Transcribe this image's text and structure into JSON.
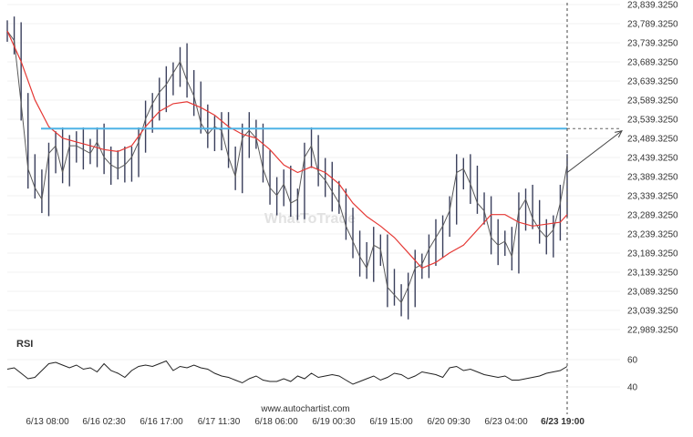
{
  "chart_data": {
    "type": "line",
    "price_panel": {
      "y_ticks": [
        "23,839.3250",
        "23,789.3250",
        "23,739.3250",
        "23,689.3250",
        "23,639.3250",
        "23,589.3250",
        "23,539.3250",
        "23,489.3250",
        "23,439.3250",
        "23,389.3250",
        "23,339.3250",
        "23,289.3250",
        "23,239.3250",
        "23,189.3250",
        "23,139.3250",
        "23,089.3250",
        "23,039.3250",
        "22,989.3250"
      ],
      "ylim": [
        22989.325,
        23839.325
      ],
      "resistance_level": 23515,
      "price_series": [
        [
          0,
          23770
        ],
        [
          1,
          23745
        ],
        [
          2,
          23580
        ],
        [
          3,
          23410
        ],
        [
          4,
          23360
        ],
        [
          5,
          23330
        ],
        [
          6,
          23450
        ],
        [
          7,
          23470
        ],
        [
          8,
          23400
        ],
        [
          9,
          23470
        ],
        [
          10,
          23470
        ],
        [
          11,
          23460
        ],
        [
          12,
          23450
        ],
        [
          13,
          23480
        ],
        [
          14,
          23440
        ],
        [
          15,
          23420
        ],
        [
          16,
          23410
        ],
        [
          17,
          23420
        ],
        [
          18,
          23440
        ],
        [
          19,
          23480
        ],
        [
          20,
          23540
        ],
        [
          21,
          23580
        ],
        [
          22,
          23610
        ],
        [
          23,
          23630
        ],
        [
          24,
          23660
        ],
        [
          25,
          23690
        ],
        [
          26,
          23640
        ],
        [
          27,
          23600
        ],
        [
          28,
          23530
        ],
        [
          29,
          23500
        ],
        [
          30,
          23520
        ],
        [
          31,
          23510
        ],
        [
          32,
          23440
        ],
        [
          33,
          23390
        ],
        [
          34,
          23490
        ],
        [
          35,
          23510
        ],
        [
          36,
          23490
        ],
        [
          37,
          23410
        ],
        [
          38,
          23360
        ],
        [
          39,
          23340
        ],
        [
          40,
          23370
        ],
        [
          41,
          23320
        ],
        [
          42,
          23330
        ],
        [
          43,
          23440
        ],
        [
          44,
          23470
        ],
        [
          45,
          23400
        ],
        [
          46,
          23380
        ],
        [
          47,
          23350
        ],
        [
          48,
          23320
        ],
        [
          49,
          23260
        ],
        [
          50,
          23220
        ],
        [
          51,
          23180
        ],
        [
          52,
          23150
        ],
        [
          53,
          23210
        ],
        [
          54,
          23200
        ],
        [
          55,
          23100
        ],
        [
          56,
          23080
        ],
        [
          57,
          23060
        ],
        [
          58,
          23100
        ],
        [
          59,
          23150
        ],
        [
          60,
          23160
        ],
        [
          61,
          23200
        ],
        [
          62,
          23230
        ],
        [
          63,
          23260
        ],
        [
          64,
          23300
        ],
        [
          65,
          23400
        ],
        [
          66,
          23410
        ],
        [
          67,
          23370
        ],
        [
          68,
          23320
        ],
        [
          69,
          23300
        ],
        [
          70,
          23230
        ],
        [
          71,
          23210
        ],
        [
          72,
          23220
        ],
        [
          73,
          23180
        ],
        [
          74,
          23300
        ],
        [
          75,
          23330
        ],
        [
          76,
          23280
        ],
        [
          77,
          23250
        ],
        [
          78,
          23230
        ],
        [
          79,
          23250
        ],
        [
          80,
          23320
        ],
        [
          81,
          23420
        ]
      ],
      "ma_series": [
        [
          0,
          23770
        ],
        [
          2,
          23690
        ],
        [
          4,
          23590
        ],
        [
          6,
          23520
        ],
        [
          8,
          23490
        ],
        [
          10,
          23480
        ],
        [
          12,
          23470
        ],
        [
          14,
          23460
        ],
        [
          16,
          23455
        ],
        [
          18,
          23470
        ],
        [
          20,
          23520
        ],
        [
          22,
          23560
        ],
        [
          24,
          23580
        ],
        [
          26,
          23585
        ],
        [
          28,
          23570
        ],
        [
          30,
          23550
        ],
        [
          32,
          23520
        ],
        [
          34,
          23500
        ],
        [
          36,
          23490
        ],
        [
          38,
          23460
        ],
        [
          40,
          23420
        ],
        [
          42,
          23400
        ],
        [
          44,
          23415
        ],
        [
          46,
          23400
        ],
        [
          48,
          23370
        ],
        [
          50,
          23320
        ],
        [
          52,
          23285
        ],
        [
          54,
          23260
        ],
        [
          56,
          23230
        ],
        [
          58,
          23190
        ],
        [
          60,
          23150
        ],
        [
          62,
          23165
        ],
        [
          64,
          23190
        ],
        [
          66,
          23210
        ],
        [
          68,
          23250
        ],
        [
          70,
          23290
        ],
        [
          72,
          23290
        ],
        [
          74,
          23270
        ],
        [
          76,
          23260
        ],
        [
          78,
          23265
        ],
        [
          80,
          23270
        ],
        [
          81,
          23290
        ]
      ],
      "forecast_end": 23509,
      "watermark": "WhatToTrade"
    },
    "rsi_panel": {
      "label": "RSI",
      "y_ticks": [
        "60",
        "40"
      ],
      "ylim": [
        30,
        70
      ],
      "values": [
        53,
        54,
        50,
        46,
        47,
        52,
        57,
        58,
        56,
        54,
        56,
        53,
        54,
        51,
        57,
        52,
        50,
        47,
        52,
        55,
        56,
        55,
        57,
        59,
        52,
        55,
        54,
        56,
        54,
        53,
        50,
        48,
        47,
        45,
        43,
        46,
        48,
        45,
        44,
        44,
        46,
        44,
        48,
        46,
        50,
        47,
        48,
        49,
        48,
        45,
        42,
        44,
        46,
        48,
        45,
        47,
        50,
        49,
        46,
        48,
        51,
        50,
        49,
        47,
        54,
        55,
        52,
        53,
        51,
        49,
        48,
        47,
        48,
        45,
        45,
        46,
        47,
        48,
        50,
        51,
        52,
        55
      ]
    },
    "x_ticks": [
      "6/13 08:00",
      "6/16 02:30",
      "6/16 17:00",
      "6/17 11:30",
      "6/18 06:00",
      "6/19 00:30",
      "6/19 15:00",
      "6/20 09:30",
      "6/23 04:00",
      "6/23 19:00"
    ],
    "source": "www.autochartist.com"
  }
}
